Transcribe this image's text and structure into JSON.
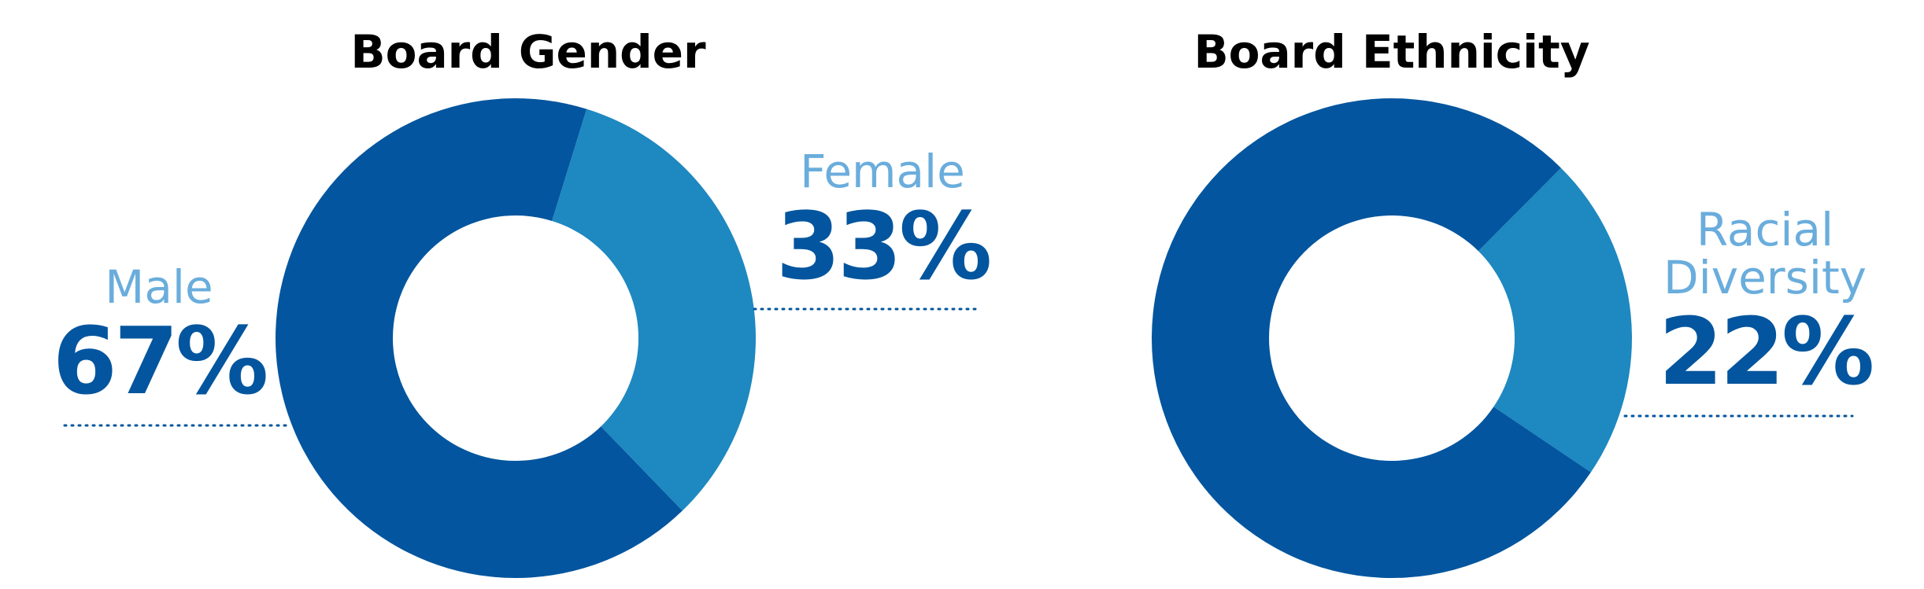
{
  "chart_data": [
    {
      "type": "donut",
      "title": "Board Gender",
      "categories": [
        "Male",
        "Female"
      ],
      "values": [
        67,
        33
      ],
      "value_labels": [
        "67%",
        "33%"
      ],
      "colors": [
        "#02559e",
        "#1e88c0"
      ]
    },
    {
      "type": "donut",
      "title": "Board Ethnicity",
      "categories": [
        null,
        "Racial Diversity"
      ],
      "values": [
        78,
        22
      ],
      "value_labels": [
        null,
        "22%"
      ],
      "colors": [
        "#02559e",
        "#1e88c0"
      ]
    }
  ]
}
